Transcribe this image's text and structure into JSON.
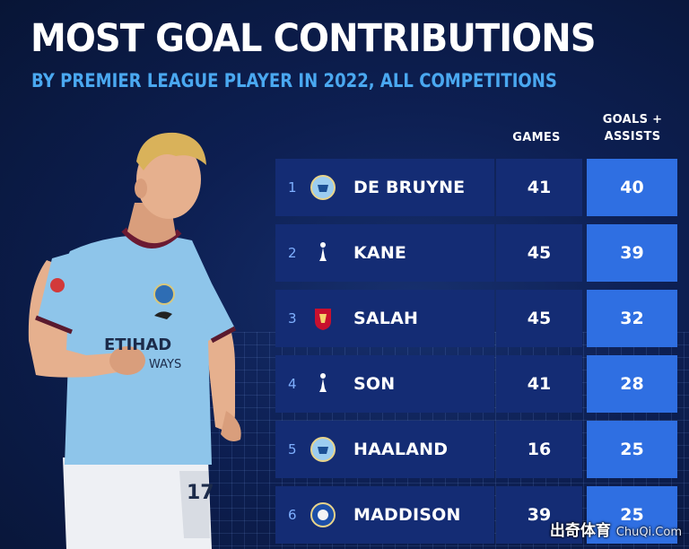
{
  "header": {
    "title": "MOST GOAL CONTRIBUTIONS",
    "subtitle": "BY PREMIER LEAGUE PLAYER IN 2022, ALL COMPETITIONS"
  },
  "columns": {
    "games": "GAMES",
    "ga_line1": "GOALS +",
    "ga_line2": "ASSISTS"
  },
  "rows": [
    {
      "rank": "1",
      "club": "manchester-city-badge",
      "name": "DE BRUYNE",
      "games": "41",
      "ga": "40"
    },
    {
      "rank": "2",
      "club": "tottenham-badge",
      "name": "KANE",
      "games": "45",
      "ga": "39"
    },
    {
      "rank": "3",
      "club": "liverpool-badge",
      "name": "SALAH",
      "games": "45",
      "ga": "32"
    },
    {
      "rank": "4",
      "club": "tottenham-badge",
      "name": "SON",
      "games": "41",
      "ga": "28"
    },
    {
      "rank": "5",
      "club": "manchester-city-badge",
      "name": "HAALAND",
      "games": "16",
      "ga": "25"
    },
    {
      "rank": "6",
      "club": "leicester-badge",
      "name": "MADDISON",
      "games": "39",
      "ga": "25"
    }
  ],
  "player_photo": {
    "shirt_sponsor_1": "ETIHAD",
    "shirt_sponsor_2": "WAYS",
    "shirt_number": "17"
  },
  "watermark": {
    "brand": "出奇体育",
    "site": "ChuQi.Com"
  },
  "colors": {
    "background": "#0d1f52",
    "row_dark": "#142c74",
    "row_highlight": "#2f6fe2",
    "subtitle": "#4aa8f0",
    "shirt": "#8ec5ea"
  }
}
